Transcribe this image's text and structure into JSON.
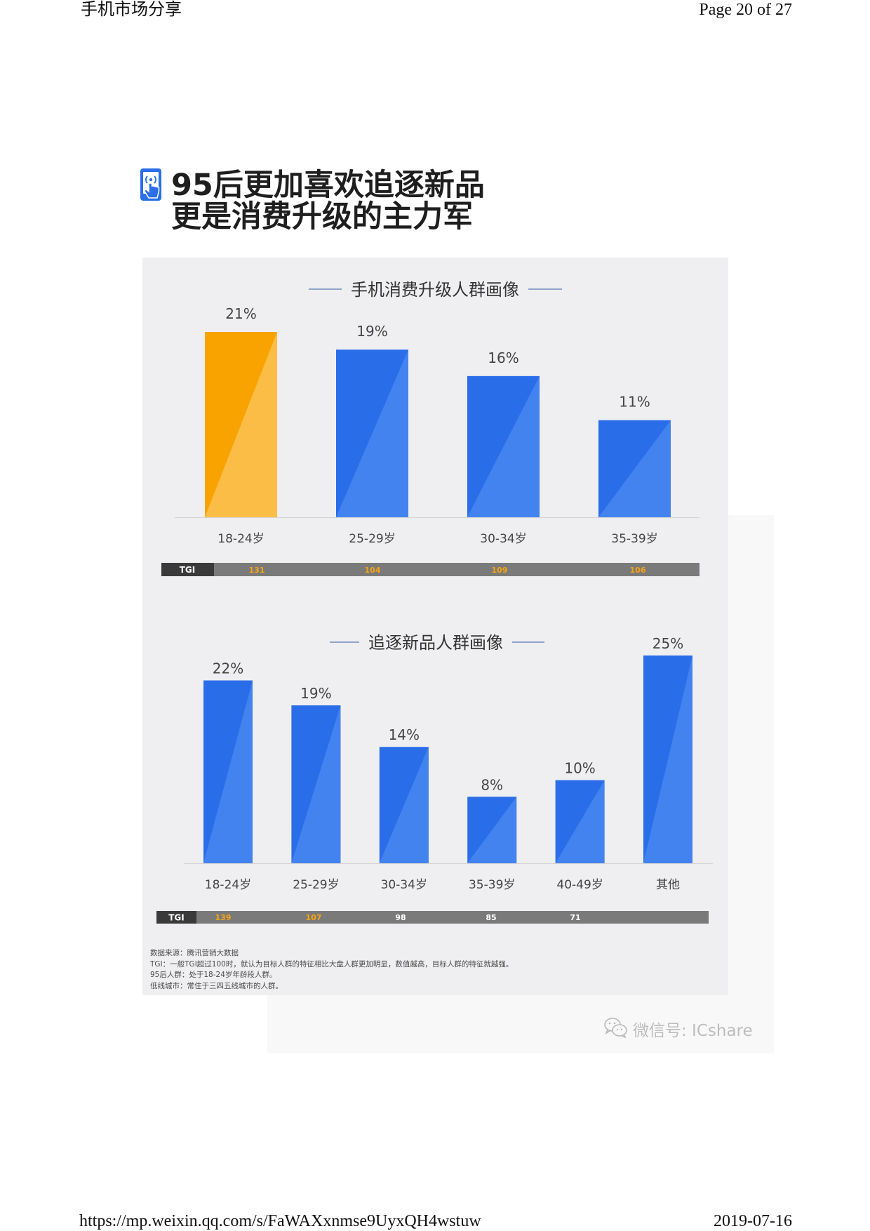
{
  "header": {
    "left": "手机市场分享",
    "right": "Page 20 of 27"
  },
  "article": {
    "icon": "phone-touch-icon",
    "title_lines": [
      "95后更加喜欢追逐新品",
      "更是消费升级的主力军"
    ]
  },
  "colors": {
    "bar_dark": "#2a6de9",
    "bar_light": "#4383f0",
    "highlight_dark": "#f8a300",
    "highlight_light": "#fbbd45",
    "tgi_highlight": "#f7a312",
    "tgi_plain": "#ffffff"
  },
  "chart_data": [
    {
      "type": "bar",
      "title": "手机消费升级人群画像",
      "categories": [
        "18-24岁",
        "25-29岁",
        "30-34岁",
        "35-39岁"
      ],
      "values": [
        21,
        19,
        16,
        11
      ],
      "data_labels": [
        "21%",
        "19%",
        "16%",
        "11%"
      ],
      "ylim": [
        0,
        21
      ],
      "highlight_index": 0,
      "grid": false,
      "tgi": {
        "label": "TGI",
        "values": [
          131,
          104,
          109,
          106
        ],
        "highlighted": [
          true,
          true,
          true,
          true
        ]
      }
    },
    {
      "type": "bar",
      "title": "追逐新品人群画像",
      "categories": [
        "18-24岁",
        "25-29岁",
        "30-34岁",
        "35-39岁",
        "40-49岁",
        "其他"
      ],
      "values": [
        22,
        19,
        14,
        8,
        10,
        25
      ],
      "data_labels": [
        "22%",
        "19%",
        "14%",
        "8%",
        "10%",
        "25%"
      ],
      "ylim": [
        0,
        25
      ],
      "highlight_index": null,
      "grid": false,
      "tgi": {
        "label": "TGI",
        "values": [
          139,
          107,
          98,
          85,
          71,
          null
        ],
        "highlighted": [
          true,
          true,
          false,
          false,
          false,
          false
        ]
      }
    }
  ],
  "footnotes": [
    "数据来源：腾讯营销大数据",
    "TGI：一般TGI超过100时，就认为目标人群的特征相比大盘人群更加明显，数值越高，目标人群的特征就越强。",
    "95后人群：处于18-24岁年龄段人群。",
    "低线城市：常住于三四五线城市的人群。"
  ],
  "watermark": {
    "icon": "wechat-icon",
    "text": "微信号: ICshare"
  },
  "footer": {
    "url": "https://mp.weixin.qq.com/s/FaWAXxnmse9UyxQH4wstuw",
    "date": "2019-07-16"
  }
}
